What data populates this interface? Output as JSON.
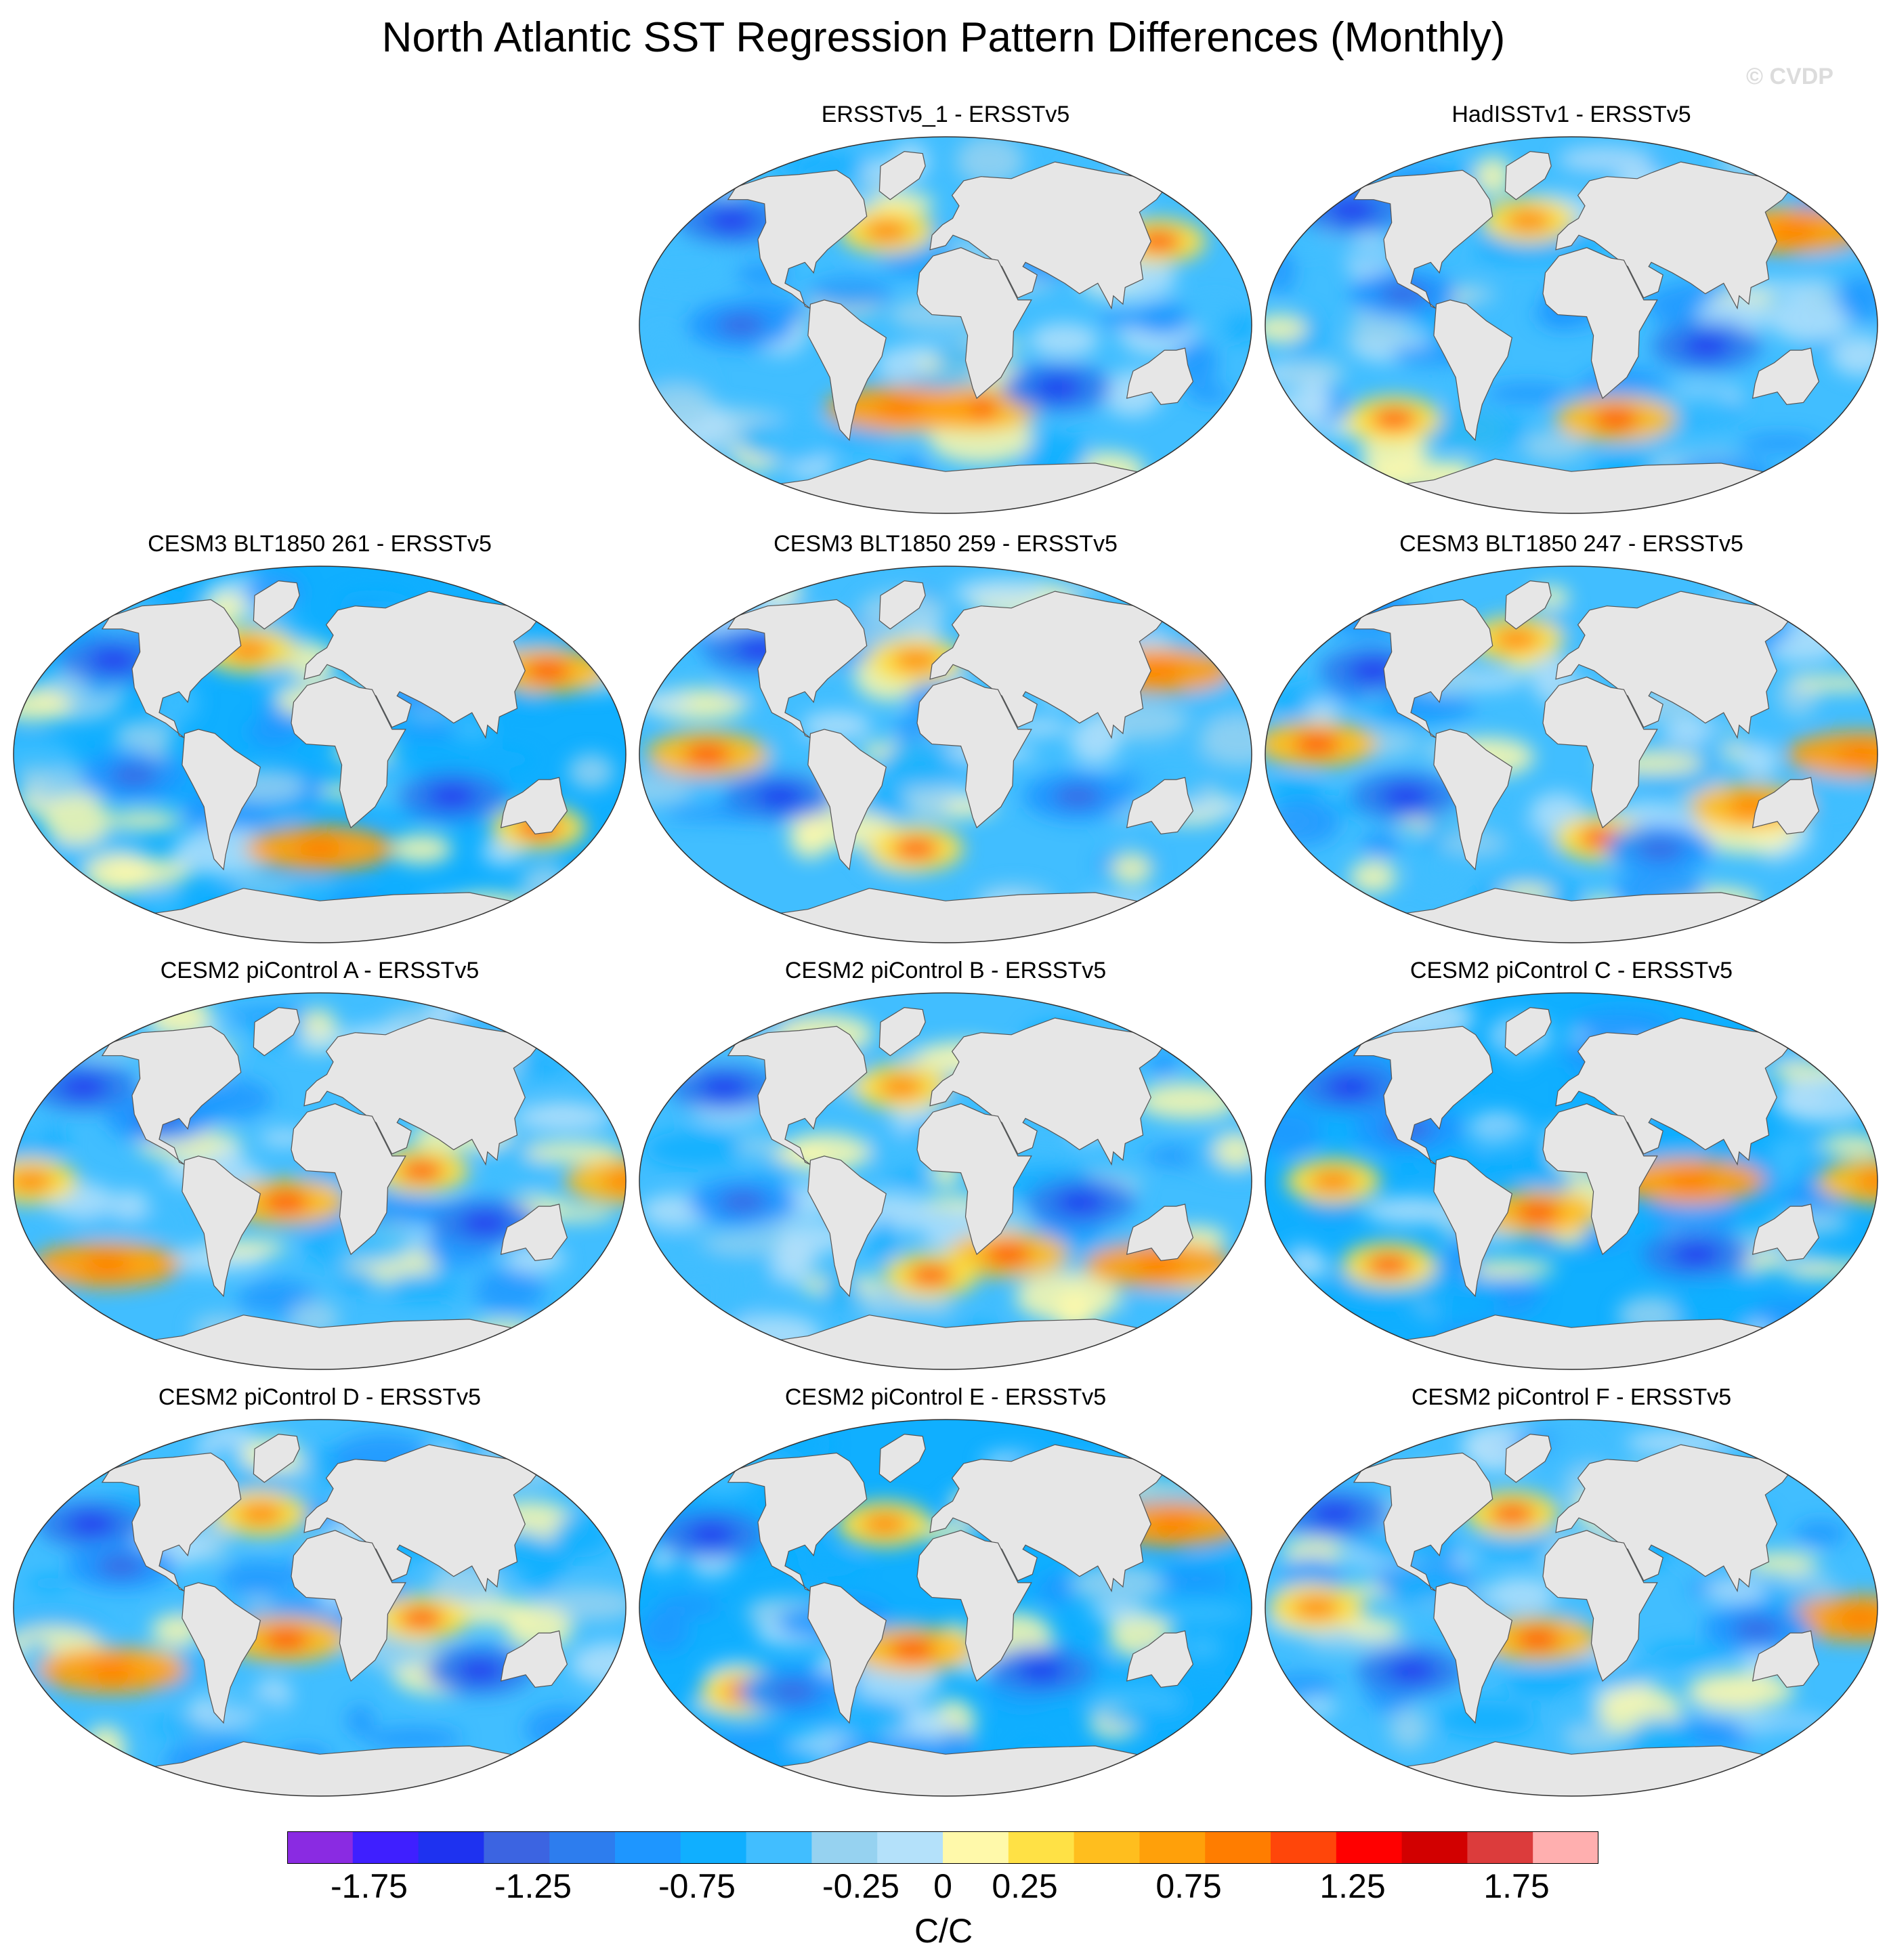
{
  "chart_data": {
    "type": "heatmap",
    "title": "North Atlantic SST Regression Pattern Differences (Monthly)",
    "watermark": "© CVDP",
    "projection": "Robinson-like global map (ellipse)",
    "panels": [
      {
        "title": "ERSSTv5_1 - ERSSTv5",
        "row": 0,
        "col": 1
      },
      {
        "title": "HadISSTv1 - ERSSTv5",
        "row": 0,
        "col": 2
      },
      {
        "title": "CESM3 BLT1850 261 - ERSSTv5",
        "row": 1,
        "col": 0
      },
      {
        "title": "CESM3 BLT1850 259 - ERSSTv5",
        "row": 1,
        "col": 1
      },
      {
        "title": "CESM3 BLT1850 247 - ERSSTv5",
        "row": 1,
        "col": 2
      },
      {
        "title": "CESM2 piControl A - ERSSTv5",
        "row": 2,
        "col": 0
      },
      {
        "title": "CESM2 piControl B - ERSSTv5",
        "row": 2,
        "col": 1
      },
      {
        "title": "CESM2 piControl C - ERSSTv5",
        "row": 2,
        "col": 2
      },
      {
        "title": "CESM2 piControl D - ERSSTv5",
        "row": 3,
        "col": 0
      },
      {
        "title": "CESM2 piControl E - ERSSTv5",
        "row": 3,
        "col": 1
      },
      {
        "title": "CESM2 piControl F - ERSSTv5",
        "row": 3,
        "col": 2
      }
    ],
    "colorbar": {
      "unit": "C/C",
      "min": -2.0,
      "max": 2.0,
      "step": 0.2,
      "tick_labels": [
        "-1.75",
        "-1.25",
        "-0.75",
        "-0.25",
        "0",
        "0.25",
        "0.75",
        "1.25",
        "1.75"
      ],
      "colors": [
        "#8a2be2",
        "#3f1fff",
        "#1e32f0",
        "#3c64e1",
        "#2d7dee",
        "#1e96ff",
        "#10afff",
        "#41beff",
        "#96d2f0",
        "#b4e1fa",
        "#fff9aa",
        "#ffe145",
        "#ffbe1e",
        "#ffa00a",
        "#ff7d00",
        "#ff460a",
        "#ff0000",
        "#d20000",
        "#dc3c3c",
        "#ffafaf"
      ]
    }
  }
}
